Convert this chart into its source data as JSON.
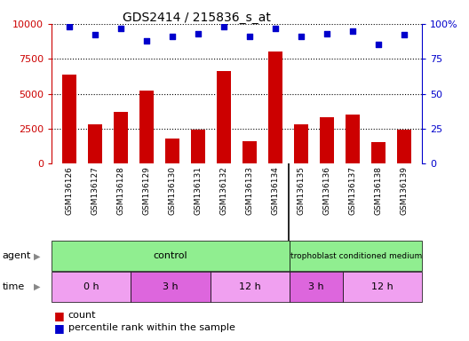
{
  "title": "GDS2414 / 215836_s_at",
  "samples": [
    "GSM136126",
    "GSM136127",
    "GSM136128",
    "GSM136129",
    "GSM136130",
    "GSM136131",
    "GSM136132",
    "GSM136133",
    "GSM136134",
    "GSM136135",
    "GSM136136",
    "GSM136137",
    "GSM136138",
    "GSM136139"
  ],
  "counts": [
    6400,
    2800,
    3700,
    5200,
    1800,
    2450,
    6600,
    1600,
    8000,
    2800,
    3300,
    3500,
    1550,
    2450
  ],
  "percentile_ranks": [
    98,
    92,
    97,
    88,
    91,
    93,
    98,
    91,
    97,
    91,
    93,
    95,
    85,
    92
  ],
  "bar_color": "#cc0000",
  "dot_color": "#0000cc",
  "ylim_left": [
    0,
    10000
  ],
  "ylim_right": [
    0,
    100
  ],
  "yticks_left": [
    0,
    2500,
    5000,
    7500,
    10000
  ],
  "yticks_right": [
    0,
    25,
    50,
    75,
    100
  ],
  "tick_color_left": "#cc0000",
  "tick_color_right": "#0000cc",
  "xlabel_area_color": "#d3d3d3",
  "agent_control_color": "#90ee90",
  "time_color_light": "#f0a0f0",
  "time_color_dark": "#dd66dd",
  "time_labels": [
    "0 h",
    "3 h",
    "12 h",
    "3 h",
    "12 h"
  ],
  "time_starts": [
    0,
    3,
    6,
    9,
    11
  ],
  "time_ends": [
    3,
    6,
    9,
    11,
    14
  ],
  "n_samples": 14,
  "n_control": 9,
  "n_trophoblast": 5
}
